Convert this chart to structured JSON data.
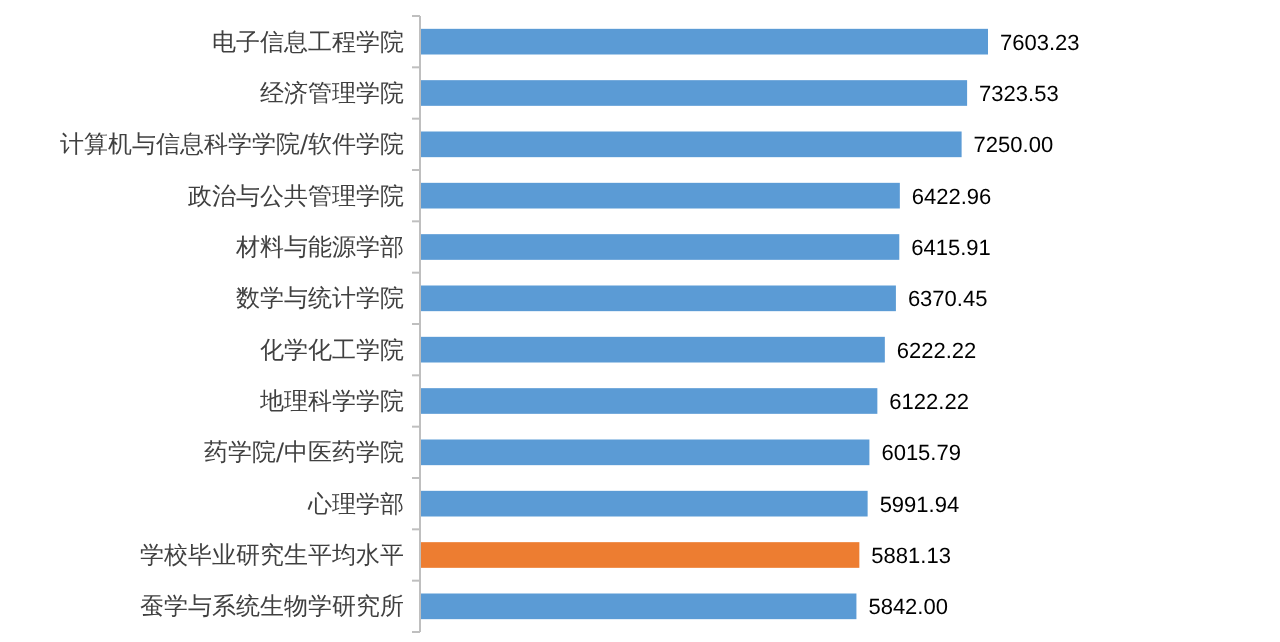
{
  "chart_data": {
    "type": "bar",
    "orientation": "horizontal",
    "categories": [
      "电子信息工程学院",
      "经济管理学院",
      "计算机与信息科学学院/软件学院",
      "政治与公共管理学院",
      "材料与能源学部",
      "数学与统计学院",
      "化学化工学院",
      "地理科学学院",
      "药学院/中医药学院",
      "心理学部",
      "学校毕业研究生平均水平",
      "蚕学与系统生物学研究所"
    ],
    "values": [
      7603.23,
      7323.53,
      7250.0,
      6422.96,
      6415.91,
      6370.45,
      6222.22,
      6122.22,
      6015.79,
      5991.94,
      5881.13,
      5842.0
    ],
    "value_labels": [
      "7603.23",
      "7323.53",
      "7250.00",
      "6422.96",
      "6415.91",
      "6370.45",
      "6222.22",
      "6122.22",
      "6015.79",
      "5991.94",
      "5881.13",
      "5842.00"
    ],
    "colors": [
      "#5b9bd5",
      "#5b9bd5",
      "#5b9bd5",
      "#5b9bd5",
      "#5b9bd5",
      "#5b9bd5",
      "#5b9bd5",
      "#5b9bd5",
      "#5b9bd5",
      "#5b9bd5",
      "#ed7d31",
      "#5b9bd5"
    ]
  }
}
